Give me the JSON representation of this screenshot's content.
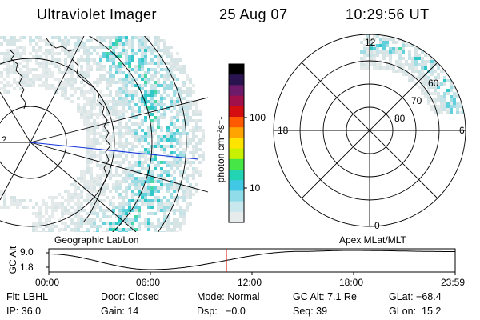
{
  "header": {
    "instrument": "Ultraviolet Imager",
    "date": "25 Aug 07",
    "time": "10:29:56 UT"
  },
  "geo_panel": {
    "title": "Geographic Lat/Lon",
    "edge_label": "?"
  },
  "colorbar": {
    "unit_label": "photon cm⁻²s⁻¹",
    "ticks": [
      "100",
      "10"
    ],
    "colors": [
      "#000000",
      "#2a1450",
      "#6e1a6a",
      "#a0104a",
      "#d40e10",
      "#ff5a00",
      "#ffa400",
      "#ffe400",
      "#c8f000",
      "#46e646",
      "#22d4b4",
      "#40c8e4",
      "#90dce8",
      "#c8e8ee",
      "#e6ecec"
    ]
  },
  "mlt_panel": {
    "title": "Apex MLat/MLT",
    "hours": {
      "top": "12",
      "left": "18",
      "right": "6",
      "bottom": "0"
    },
    "mlat": [
      "60",
      "70",
      "80"
    ]
  },
  "timeline": {
    "y_label": "GC Alt",
    "y_ticks": [
      "9.0",
      "1.8"
    ],
    "x_ticks": [
      "00:00",
      "06:00",
      "12:00",
      "18:00",
      "23:59"
    ],
    "current_fraction": 0.437,
    "curve_color": "#000000",
    "marker_color": "#dd0000"
  },
  "footer": {
    "row1": [
      "Flt: LBHL",
      "Door: Closed",
      "Mode: Normal",
      "GC Alt: 7.1 Re",
      "GLat: −68.4"
    ],
    "row2": [
      "IP: 36.0",
      "Gain: 14",
      "Dsp:   −0.0",
      "Seq: 39",
      "GLon:  15.2"
    ]
  }
}
